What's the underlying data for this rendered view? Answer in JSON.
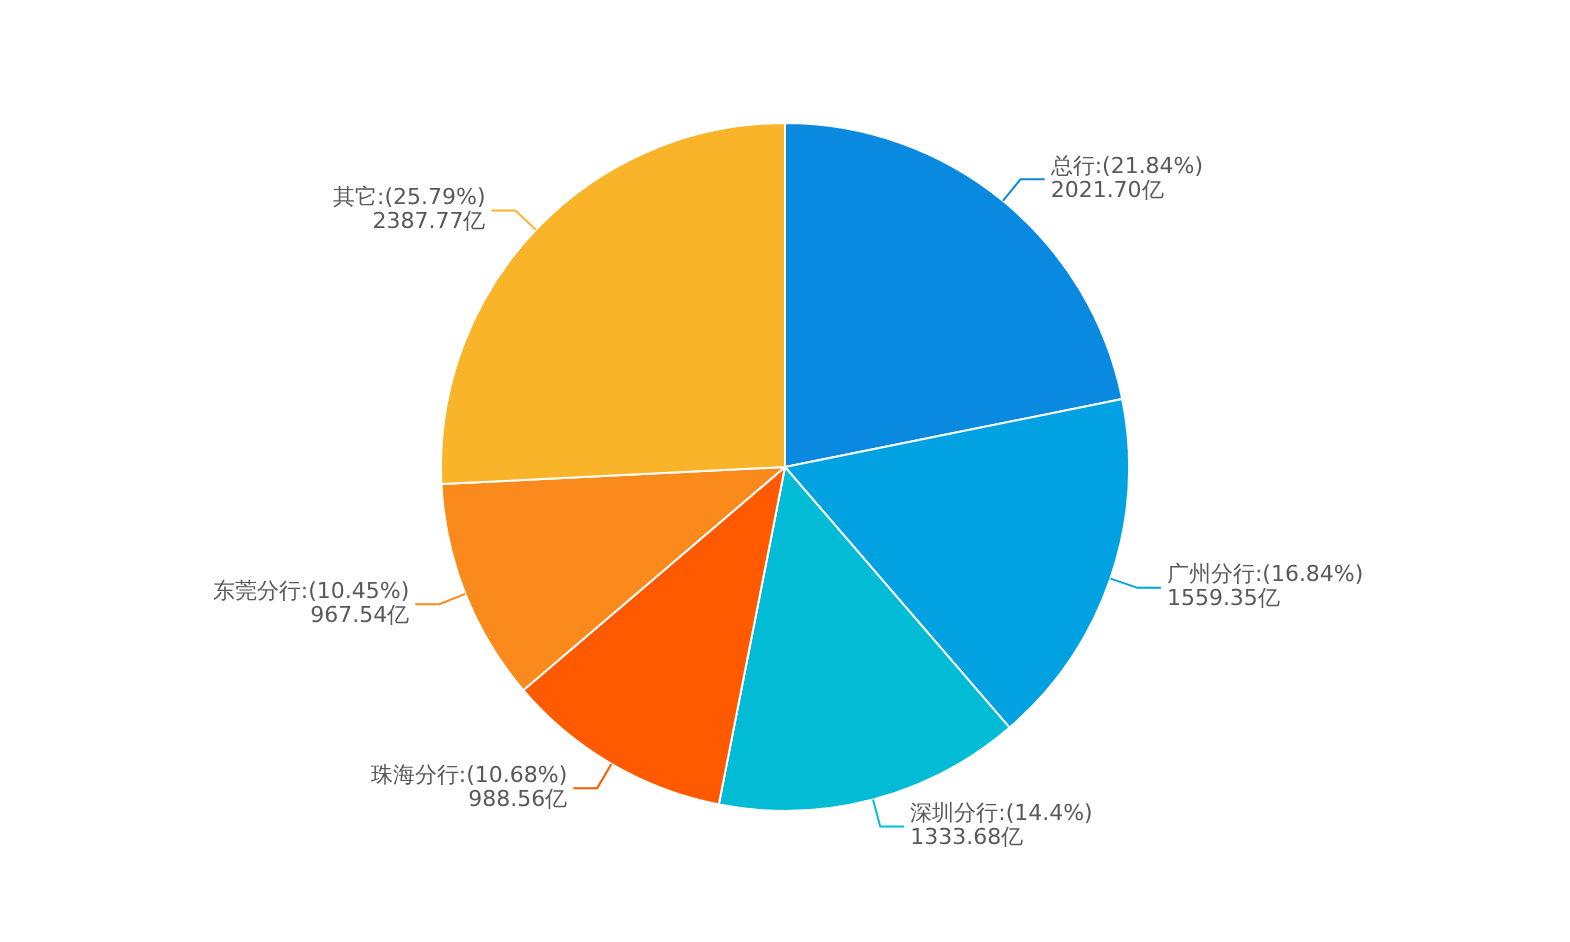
{
  "chart_data": {
    "type": "pie",
    "categories": [
      "总行",
      "广州分行",
      "深圳分行",
      "珠海分行",
      "东莞分行",
      "其它"
    ],
    "values": [
      2021.7,
      1559.35,
      1333.68,
      988.56,
      967.54,
      2387.77
    ],
    "colors": [
      "#0a89e1",
      "#02a2e2",
      "#02bcd6",
      "#ff5a00",
      "#fb8a1c",
      "#f9b42a"
    ],
    "value_labels": [
      ":(21.84%)\n2021.70亿",
      ":(16.84%)\n1559.35亿",
      ":(14.4%)\n1333.68亿",
      ":(10.68%)\n988.56亿",
      ":(10.45%)\n967.54亿",
      ":(25.79%)\n2387.77亿"
    ],
    "legend": false
  }
}
